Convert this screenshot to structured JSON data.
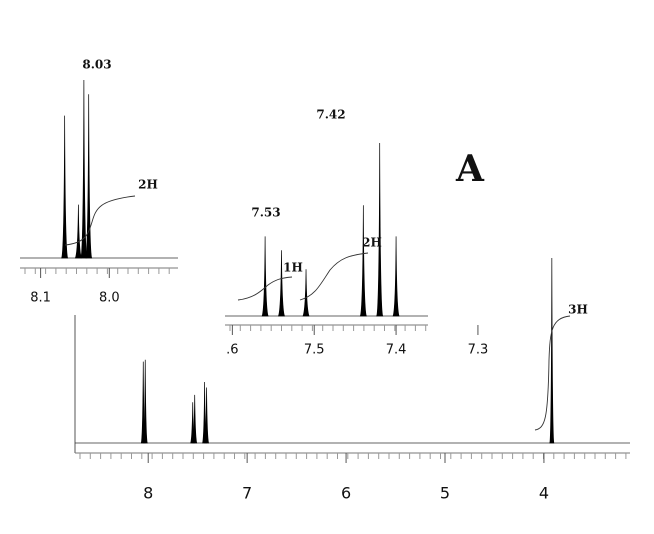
{
  "chart_data": [
    {
      "type": "spectrum",
      "x": [
        8.05,
        8.03,
        7.55,
        7.53,
        7.43,
        7.41,
        3.92
      ],
      "values": [
        44,
        45,
        22,
        26,
        33,
        30,
        100
      ],
      "xlim": [
        8.74,
        3.13
      ],
      "ylim": [
        0,
        100
      ],
      "xticks": [
        8,
        7,
        6,
        5,
        4
      ],
      "color": "#000000",
      "annotations": [
        "3H"
      ]
    },
    {
      "type": "spectrum",
      "x": [
        8.065,
        8.045,
        8.037,
        8.03
      ],
      "values": [
        80,
        30,
        100,
        92
      ],
      "xlim": [
        8.13,
        7.9
      ],
      "ylim": [
        0,
        100
      ],
      "xticks": [
        8.1,
        {
          "value": 8,
          "label": "8.0"
        }
      ],
      "color": "#000000",
      "annotations": [
        "8.03",
        "2H"
      ]
    },
    {
      "type": "spectrum",
      "x": [
        7.56,
        7.54,
        7.51,
        7.44,
        7.42,
        7.4
      ],
      "values": [
        46,
        38,
        27,
        64,
        100,
        46
      ],
      "xlim": [
        7.609,
        7.361
      ],
      "ylim": [
        0,
        100
      ],
      "xticks": [
        {
          "value": 7.6,
          "label": ".6"
        },
        7.5,
        7.4,
        7.3
      ],
      "color": "#000000",
      "annotations": [
        "7.42",
        "7.53",
        "1H",
        "2H"
      ]
    }
  ],
  "panel_label": "A"
}
